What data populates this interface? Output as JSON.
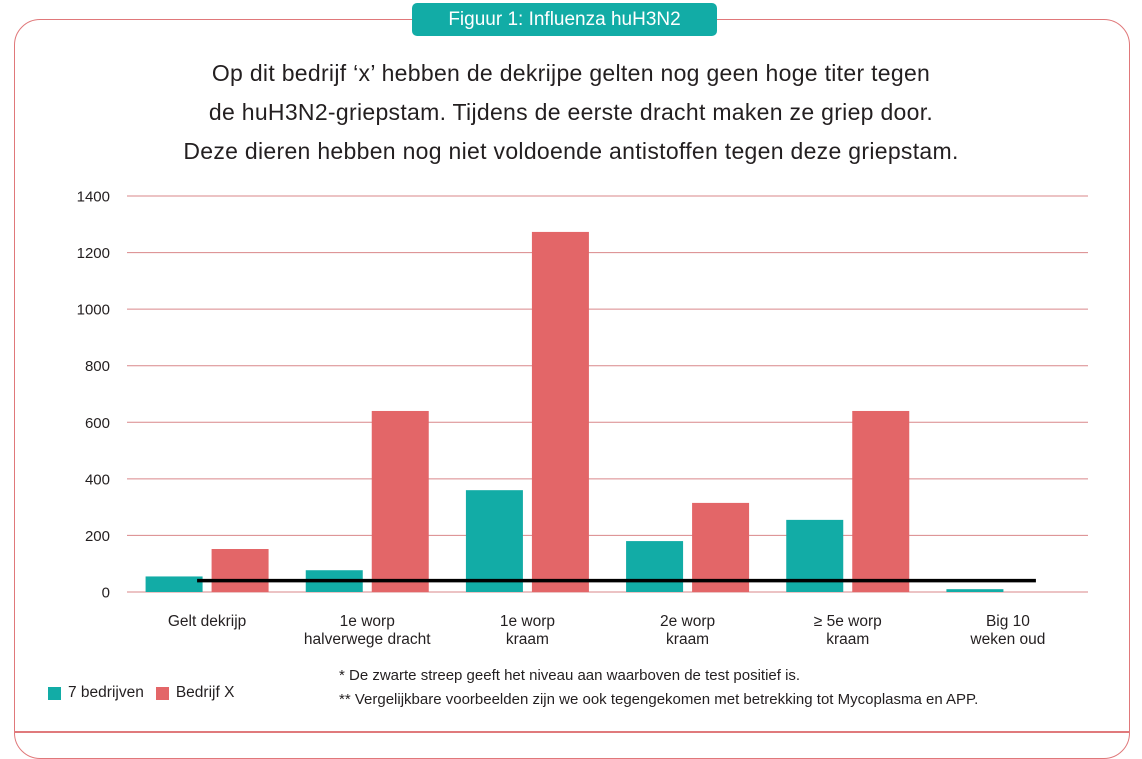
{
  "header": {
    "badge": "Figuur 1: Influenza huH3N2",
    "subtitle_lines": [
      "Op dit bedrijf ‘x’ hebben de dekrijpe gelten nog geen hoge titer tegen",
      "de huH3N2-griepstam. Tijdens de eerste dracht maken ze griep door.",
      "Deze dieren hebben nog niet voldoende antistoffen tegen deze griepstam."
    ]
  },
  "colors": {
    "teal": "#12aca6",
    "red": "#e36668",
    "grid": "#d9878a",
    "threshold": "#000000",
    "frame": "#e0787a"
  },
  "chart_data": {
    "type": "bar",
    "categories": [
      [
        "Gelt dekrijp"
      ],
      [
        "1e worp",
        "halverwege dracht"
      ],
      [
        "1e worp",
        "kraam"
      ],
      [
        "2e worp",
        "kraam"
      ],
      [
        "≥ 5e worp",
        "kraam"
      ],
      [
        "Big 10",
        "weken oud"
      ]
    ],
    "series": [
      {
        "name": "7 bedrijven",
        "color": "#12aca6",
        "values": [
          55,
          77,
          360,
          180,
          255,
          10
        ]
      },
      {
        "name": "Bedrijf X",
        "color": "#e36668",
        "values": [
          152,
          640,
          1273,
          315,
          640,
          null
        ]
      }
    ],
    "threshold": 40,
    "ylim": [
      0,
      1400
    ],
    "yticks": [
      0,
      200,
      400,
      600,
      800,
      1000,
      1200,
      1400
    ],
    "grid": true,
    "legend": "bottom-left"
  },
  "footnotes": [
    "* De zwarte streep geeft het niveau aan waarboven de test positief is.",
    "** Vergelijkbare voorbeelden zijn we ook tegengekomen met betrekking tot Mycoplasma en APP."
  ]
}
